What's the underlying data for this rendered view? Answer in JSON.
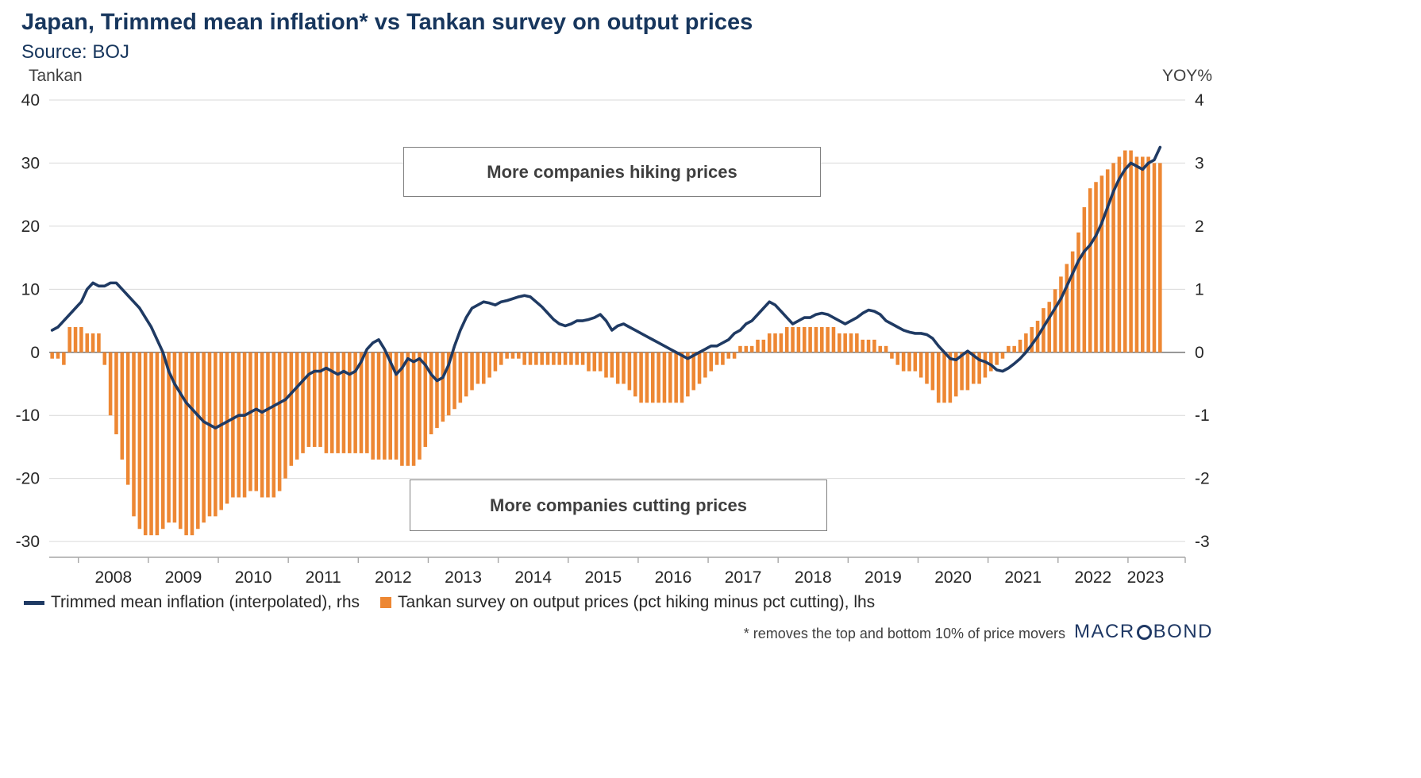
{
  "header": {
    "title": "Japan, Trimmed mean inflation* vs Tankan survey on output prices",
    "source": "Source: BOJ"
  },
  "axes": {
    "left_title": "Tankan",
    "right_title": "YOY%",
    "left_ticks": [
      40,
      30,
      20,
      10,
      0,
      -10,
      -20,
      -30
    ],
    "right_ticks": [
      4,
      3,
      2,
      1,
      0,
      -1,
      -2,
      -3
    ],
    "x_labels": [
      "2008",
      "2009",
      "2010",
      "2011",
      "2012",
      "2013",
      "2014",
      "2015",
      "2016",
      "2017",
      "2018",
      "2019",
      "2020",
      "2021",
      "2022",
      "2023"
    ]
  },
  "annotations": {
    "hiking": "More companies hiking prices",
    "cutting": "More companies cutting prices"
  },
  "legend": [
    {
      "label": "Trimmed mean inflation (interpolated), rhs",
      "type": "line",
      "color": "#1F3A63"
    },
    {
      "label": "Tankan survey on output prices (pct hiking minus pct cutting), lhs",
      "type": "bar",
      "color": "#ED8733"
    }
  ],
  "footnote": "* removes the top and bottom 10% of price movers",
  "logo": {
    "pre": "MACR",
    "post": "BOND"
  },
  "colors": {
    "title": "#17365D",
    "line": "#1F3A63",
    "bar": "#ED8733",
    "grid": "#d9d9d9",
    "zero_line": "#7f7f7f",
    "axis_line": "#a6a6a6",
    "tick_text": "#262626"
  },
  "chart_data": {
    "type": "bar+line",
    "title": "Japan, Trimmed mean inflation* vs Tankan survey on output prices",
    "frequency": "monthly",
    "x_start": "2007-08",
    "x_end": "2023-06",
    "left_axis": {
      "title": "Tankan",
      "ticks": [
        40,
        30,
        20,
        10,
        0,
        -10,
        -20,
        -30
      ],
      "range": [
        -32.5,
        41
      ]
    },
    "right_axis": {
      "title": "YOY%",
      "ticks": [
        4,
        3,
        2,
        1,
        0,
        -1,
        -2,
        -3
      ],
      "range": [
        -3.25,
        4.1
      ]
    },
    "grid": true,
    "legend_position": "bottom",
    "bar_series": {
      "name": "Tankan survey on output prices (pct hiking minus pct cutting), lhs",
      "axis": "left",
      "values": [
        -1,
        -1,
        -2,
        4,
        4,
        4,
        3,
        3,
        3,
        -2,
        -10,
        -13,
        -17,
        -21,
        -26,
        -28,
        -29,
        -29,
        -29,
        -28,
        -27,
        -27,
        -28,
        -29,
        -29,
        -28,
        -27,
        -26,
        -26,
        -25,
        -24,
        -23,
        -23,
        -23,
        -22,
        -22,
        -23,
        -23,
        -23,
        -22,
        -20,
        -18,
        -17,
        -16,
        -15,
        -15,
        -15,
        -16,
        -16,
        -16,
        -16,
        -16,
        -16,
        -16,
        -16,
        -17,
        -17,
        -17,
        -17,
        -17,
        -18,
        -18,
        -18,
        -17,
        -15,
        -13,
        -12,
        -11,
        -10,
        -9,
        -8,
        -7,
        -6,
        -5,
        -5,
        -4,
        -3,
        -2,
        -1,
        -1,
        -1,
        -2,
        -2,
        -2,
        -2,
        -2,
        -2,
        -2,
        -2,
        -2,
        -2,
        -2,
        -3,
        -3,
        -3,
        -4,
        -4,
        -5,
        -5,
        -6,
        -7,
        -8,
        -8,
        -8,
        -8,
        -8,
        -8,
        -8,
        -8,
        -7,
        -6,
        -5,
        -4,
        -3,
        -2,
        -2,
        -1,
        -1,
        1,
        1,
        1,
        2,
        2,
        3,
        3,
        3,
        4,
        4,
        4,
        4,
        4,
        4,
        4,
        4,
        4,
        3,
        3,
        3,
        3,
        2,
        2,
        2,
        1,
        1,
        -1,
        -2,
        -3,
        -3,
        -3,
        -4,
        -5,
        -6,
        -8,
        -8,
        -8,
        -7,
        -6,
        -6,
        -5,
        -5,
        -4,
        -3,
        -2,
        -1,
        1,
        1,
        2,
        3,
        4,
        5,
        7,
        8,
        10,
        12,
        14,
        16,
        19,
        23,
        26,
        27,
        28,
        29,
        30,
        31,
        32,
        32,
        31,
        31,
        31,
        30,
        30
      ]
    },
    "line_series": {
      "name": "Trimmed mean inflation (interpolated), rhs",
      "axis": "right",
      "values": [
        0.35,
        0.4,
        0.5,
        0.6,
        0.7,
        0.8,
        1.0,
        1.1,
        1.05,
        1.05,
        1.1,
        1.1,
        1.0,
        0.9,
        0.8,
        0.7,
        0.55,
        0.4,
        0.2,
        0.0,
        -0.3,
        -0.5,
        -0.65,
        -0.8,
        -0.9,
        -1.0,
        -1.1,
        -1.15,
        -1.2,
        -1.15,
        -1.1,
        -1.05,
        -1.0,
        -1.0,
        -0.95,
        -0.9,
        -0.95,
        -0.9,
        -0.85,
        -0.8,
        -0.75,
        -0.65,
        -0.55,
        -0.45,
        -0.35,
        -0.3,
        -0.3,
        -0.25,
        -0.3,
        -0.35,
        -0.3,
        -0.35,
        -0.3,
        -0.15,
        0.05,
        0.15,
        0.2,
        0.05,
        -0.15,
        -0.35,
        -0.25,
        -0.1,
        -0.15,
        -0.1,
        -0.2,
        -0.35,
        -0.45,
        -0.4,
        -0.2,
        0.1,
        0.35,
        0.55,
        0.7,
        0.75,
        0.8,
        0.78,
        0.75,
        0.8,
        0.82,
        0.85,
        0.88,
        0.9,
        0.88,
        0.8,
        0.72,
        0.62,
        0.52,
        0.45,
        0.42,
        0.45,
        0.5,
        0.5,
        0.52,
        0.55,
        0.6,
        0.5,
        0.35,
        0.42,
        0.45,
        0.4,
        0.35,
        0.3,
        0.25,
        0.2,
        0.15,
        0.1,
        0.05,
        0.0,
        -0.05,
        -0.1,
        -0.05,
        0.0,
        0.05,
        0.1,
        0.1,
        0.15,
        0.2,
        0.3,
        0.35,
        0.45,
        0.5,
        0.6,
        0.7,
        0.8,
        0.75,
        0.65,
        0.55,
        0.45,
        0.5,
        0.55,
        0.55,
        0.6,
        0.62,
        0.6,
        0.55,
        0.5,
        0.45,
        0.5,
        0.55,
        0.62,
        0.67,
        0.65,
        0.6,
        0.5,
        0.45,
        0.4,
        0.35,
        0.32,
        0.3,
        0.3,
        0.28,
        0.22,
        0.1,
        0.0,
        -0.1,
        -0.12,
        -0.05,
        0.02,
        -0.05,
        -0.12,
        -0.15,
        -0.2,
        -0.28,
        -0.3,
        -0.25,
        -0.18,
        -0.1,
        0.0,
        0.12,
        0.25,
        0.4,
        0.55,
        0.7,
        0.85,
        1.05,
        1.25,
        1.45,
        1.6,
        1.7,
        1.85,
        2.05,
        2.3,
        2.55,
        2.75,
        2.9,
        3.0,
        2.95,
        2.9,
        3.0,
        3.05,
        3.25
      ]
    }
  }
}
